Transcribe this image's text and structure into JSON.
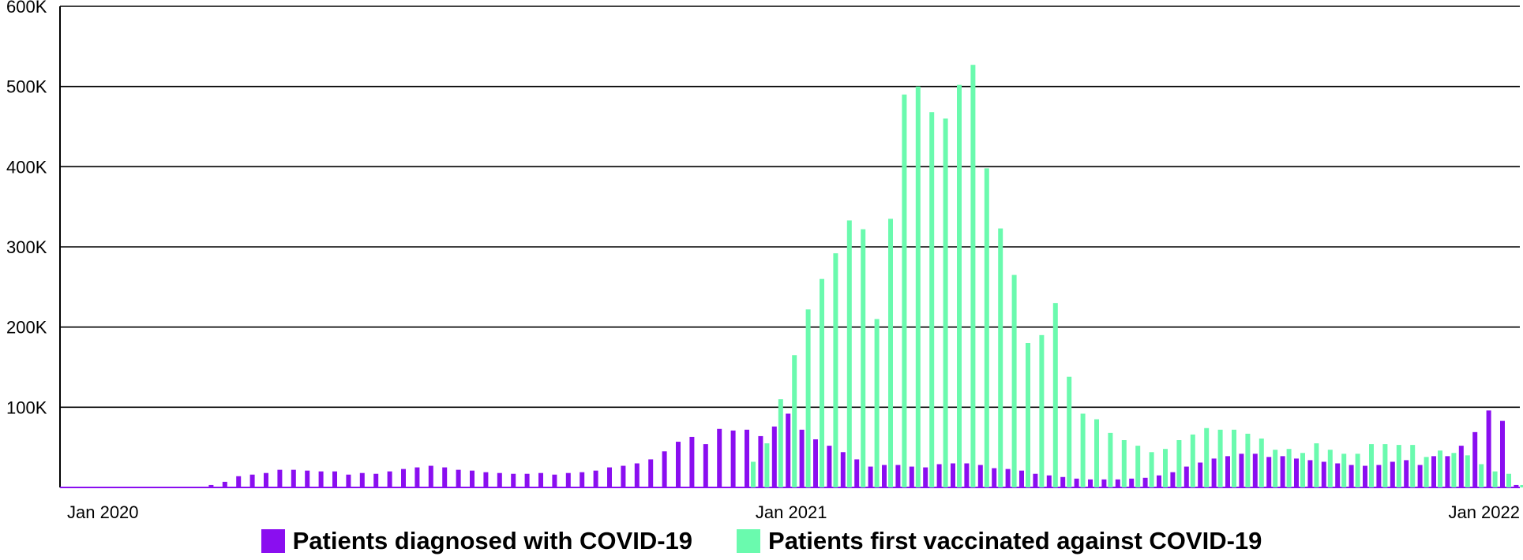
{
  "chart_data": {
    "type": "bar",
    "title": "",
    "xlabel": "",
    "ylabel": "",
    "ylim": [
      0,
      600000
    ],
    "y_ticks": [
      {
        "value": 100000,
        "label": "100K"
      },
      {
        "value": 200000,
        "label": "200K"
      },
      {
        "value": 300000,
        "label": "300K"
      },
      {
        "value": 400000,
        "label": "400K"
      },
      {
        "value": 500000,
        "label": "500K"
      },
      {
        "value": 600000,
        "label": "600K"
      }
    ],
    "x_ticks": [
      {
        "week_index": 0,
        "label": "Jan 2020"
      },
      {
        "week_index": 53,
        "label": "Jan 2021"
      },
      {
        "week_index": 105,
        "label": "Jan 2022"
      }
    ],
    "grid": true,
    "legend_position": "bottom",
    "series": [
      {
        "name": "Patients diagnosed with COVID-19",
        "color": "#8A0EF0",
        "values": [
          0,
          0,
          0,
          0,
          0,
          0,
          0,
          0,
          0,
          0,
          0,
          3000,
          7000,
          14000,
          16000,
          18000,
          22000,
          22000,
          21000,
          20000,
          20000,
          16000,
          18000,
          17000,
          20000,
          23000,
          25000,
          27000,
          25000,
          22000,
          21000,
          19000,
          18000,
          17000,
          17000,
          18000,
          16000,
          18000,
          19000,
          21000,
          25000,
          27000,
          30000,
          35000,
          45000,
          57000,
          63000,
          54000,
          73000,
          71000,
          72000,
          64000,
          76000,
          92000,
          72000,
          60000,
          52000,
          44000,
          35000,
          26000,
          28000,
          28000,
          26000,
          25000,
          29000,
          30000,
          30000,
          28000,
          24000,
          23000,
          21000,
          17000,
          15000,
          13000,
          11000,
          10000,
          10000,
          10000,
          11000,
          12000,
          15000,
          19000,
          26000,
          31000,
          36000,
          39000,
          42000,
          42000,
          38000,
          39000,
          36000,
          34000,
          32000,
          30000,
          28000,
          27000,
          28000,
          32000,
          34000,
          28000,
          39000,
          39000,
          52000,
          69000,
          96000,
          83000,
          3000,
          2000
        ],
        "start_index": 0
      },
      {
        "name": "Patients first vaccinated against COVID-19",
        "color": "#6AFAAE",
        "values": [
          32000,
          55000,
          110000,
          165000,
          222000,
          260000,
          292000,
          333000,
          322000,
          210000,
          335000,
          490000,
          500000,
          468000,
          460000,
          502000,
          527000,
          398000,
          323000,
          265000,
          180000,
          190000,
          230000,
          138000,
          92000,
          85000,
          68000,
          59000,
          52000,
          44000,
          48000,
          59000,
          66000,
          74000,
          72000,
          72000,
          67000,
          61000,
          47000,
          48000,
          43000,
          55000,
          47000,
          42000,
          42000,
          54000,
          54000,
          53000,
          53000,
          38000,
          46000,
          43000,
          40000,
          29000,
          20000,
          17000,
          3000
        ],
        "start_index": 50
      }
    ]
  }
}
